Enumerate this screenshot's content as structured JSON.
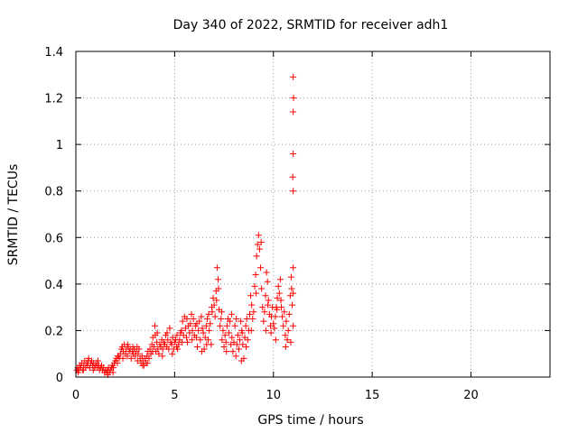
{
  "chart_data": {
    "type": "scatter",
    "title": "Day 340 of 2022, SRMTID for receiver adh1",
    "xlabel": "GPS time / hours",
    "ylabel": "SRMTID / TECUs",
    "xlim": [
      0,
      24
    ],
    "ylim": [
      0,
      1.4
    ],
    "x_ticks": [
      0,
      5,
      10,
      15,
      20
    ],
    "x_tick_labels": [
      "0",
      "5",
      "10",
      "15",
      "20"
    ],
    "y_ticks": [
      0,
      0.2,
      0.4,
      0.6,
      0.8,
      1.0,
      1.2,
      1.4
    ],
    "y_tick_labels": [
      "0",
      "0.2",
      "0.4",
      "0.6",
      "0.8",
      "1",
      "1.2",
      "1.4"
    ],
    "grid": true,
    "marker": "+",
    "series": [
      {
        "name": "adh1",
        "color": "#ff0000",
        "points": [
          [
            0.05,
            0.03
          ],
          [
            0.1,
            0.04
          ],
          [
            0.15,
            0.03
          ],
          [
            0.2,
            0.05
          ],
          [
            0.25,
            0.04
          ],
          [
            0.3,
            0.06
          ],
          [
            0.35,
            0.03
          ],
          [
            0.4,
            0.05
          ],
          [
            0.45,
            0.07
          ],
          [
            0.5,
            0.04
          ],
          [
            0.55,
            0.06
          ],
          [
            0.6,
            0.05
          ],
          [
            0.65,
            0.08
          ],
          [
            0.7,
            0.04
          ],
          [
            0.75,
            0.06
          ],
          [
            0.8,
            0.07
          ],
          [
            0.85,
            0.05
          ],
          [
            0.9,
            0.06
          ],
          [
            0.95,
            0.04
          ],
          [
            1.0,
            0.05
          ],
          [
            1.05,
            0.06
          ],
          [
            1.1,
            0.04
          ],
          [
            1.15,
            0.05
          ],
          [
            1.2,
            0.03
          ],
          [
            1.25,
            0.04
          ],
          [
            1.3,
            0.05
          ],
          [
            1.35,
            0.03
          ],
          [
            1.4,
            0.04
          ],
          [
            1.45,
            0.02
          ],
          [
            1.5,
            0.03
          ],
          [
            1.55,
            0.02
          ],
          [
            1.6,
            0.03
          ],
          [
            1.65,
            0.04
          ],
          [
            1.7,
            0.02
          ],
          [
            1.75,
            0.03
          ],
          [
            1.8,
            0.04
          ],
          [
            1.85,
            0.05
          ],
          [
            1.9,
            0.04
          ],
          [
            1.95,
            0.06
          ],
          [
            2.0,
            0.07
          ],
          [
            2.05,
            0.08
          ],
          [
            2.1,
            0.06
          ],
          [
            2.15,
            0.09
          ],
          [
            2.2,
            0.08
          ],
          [
            2.25,
            0.1
          ],
          [
            2.3,
            0.12
          ],
          [
            2.35,
            0.13
          ],
          [
            2.4,
            0.11
          ],
          [
            2.45,
            0.14
          ],
          [
            2.5,
            0.1
          ],
          [
            2.55,
            0.12
          ],
          [
            2.6,
            0.09
          ],
          [
            2.65,
            0.13
          ],
          [
            2.7,
            0.11
          ],
          [
            2.75,
            0.12
          ],
          [
            2.8,
            0.08
          ],
          [
            2.85,
            0.11
          ],
          [
            2.9,
            0.1
          ],
          [
            2.95,
            0.12
          ],
          [
            3.0,
            0.09
          ],
          [
            3.05,
            0.11
          ],
          [
            3.1,
            0.13
          ],
          [
            3.15,
            0.1
          ],
          [
            3.2,
            0.12
          ],
          [
            3.25,
            0.08
          ],
          [
            3.3,
            0.06
          ],
          [
            3.35,
            0.09
          ],
          [
            3.4,
            0.07
          ],
          [
            3.45,
            0.05
          ],
          [
            3.5,
            0.08
          ],
          [
            3.55,
            0.06
          ],
          [
            3.6,
            0.09
          ],
          [
            3.65,
            0.11
          ],
          [
            3.7,
            0.08
          ],
          [
            3.75,
            0.12
          ],
          [
            3.8,
            0.1
          ],
          [
            3.85,
            0.14
          ],
          [
            3.9,
            0.17
          ],
          [
            3.95,
            0.13
          ],
          [
            4.0,
            0.22
          ],
          [
            4.05,
            0.11
          ],
          [
            4.1,
            0.15
          ],
          [
            4.15,
            0.12
          ],
          [
            4.2,
            0.1
          ],
          [
            4.25,
            0.14
          ],
          [
            4.3,
            0.13
          ],
          [
            4.35,
            0.16
          ],
          [
            4.4,
            0.12
          ],
          [
            4.45,
            0.15
          ],
          [
            4.5,
            0.14
          ],
          [
            4.55,
            0.18
          ],
          [
            4.6,
            0.13
          ],
          [
            4.65,
            0.16
          ],
          [
            4.7,
            0.12
          ],
          [
            4.75,
            0.21
          ],
          [
            4.8,
            0.15
          ],
          [
            4.85,
            0.14
          ],
          [
            4.9,
            0.17
          ],
          [
            4.95,
            0.12
          ],
          [
            5.0,
            0.15
          ],
          [
            5.05,
            0.16
          ],
          [
            5.1,
            0.13
          ],
          [
            5.15,
            0.12
          ],
          [
            5.2,
            0.14
          ],
          [
            5.25,
            0.16
          ],
          [
            5.3,
            0.19
          ],
          [
            5.35,
            0.2
          ],
          [
            5.4,
            0.24
          ],
          [
            5.45,
            0.18
          ],
          [
            5.5,
            0.26
          ],
          [
            5.55,
            0.21
          ],
          [
            5.6,
            0.17
          ],
          [
            5.65,
            0.15
          ],
          [
            5.7,
            0.22
          ],
          [
            5.75,
            0.19
          ],
          [
            5.8,
            0.23
          ],
          [
            5.85,
            0.27
          ],
          [
            5.9,
            0.2
          ],
          [
            5.95,
            0.25
          ],
          [
            6.0,
            0.18
          ],
          [
            6.05,
            0.22
          ],
          [
            6.1,
            0.17
          ],
          [
            6.15,
            0.13
          ],
          [
            6.2,
            0.2
          ],
          [
            6.25,
            0.24
          ],
          [
            6.3,
            0.16
          ],
          [
            6.35,
            0.26
          ],
          [
            6.4,
            0.21
          ],
          [
            6.45,
            0.19
          ],
          [
            6.5,
            0.12
          ],
          [
            6.55,
            0.17
          ],
          [
            6.6,
            0.22
          ],
          [
            6.65,
            0.25
          ],
          [
            6.7,
            0.16
          ],
          [
            6.75,
            0.2
          ],
          [
            6.8,
            0.23
          ],
          [
            6.85,
            0.14
          ],
          [
            6.9,
            0.28
          ],
          [
            6.95,
            0.34
          ],
          [
            7.0,
            0.31
          ],
          [
            7.05,
            0.26
          ],
          [
            7.1,
            0.37
          ],
          [
            7.15,
            0.47
          ],
          [
            7.2,
            0.42
          ],
          [
            7.25,
            0.29
          ],
          [
            7.3,
            0.22
          ],
          [
            7.35,
            0.25
          ],
          [
            7.4,
            0.16
          ],
          [
            7.45,
            0.2
          ],
          [
            7.5,
            0.13
          ],
          [
            7.55,
            0.18
          ],
          [
            7.6,
            0.15
          ],
          [
            7.65,
            0.22
          ],
          [
            7.7,
            0.25
          ],
          [
            7.75,
            0.19
          ],
          [
            7.8,
            0.24
          ],
          [
            7.85,
            0.14
          ],
          [
            7.9,
            0.17
          ],
          [
            7.95,
            0.11
          ],
          [
            8.0,
            0.15
          ],
          [
            8.05,
            0.22
          ],
          [
            8.1,
            0.09
          ],
          [
            8.15,
            0.14
          ],
          [
            8.2,
            0.18
          ],
          [
            8.25,
            0.12
          ],
          [
            8.3,
            0.16
          ],
          [
            8.35,
            0.24
          ],
          [
            8.4,
            0.2
          ],
          [
            8.45,
            0.14
          ],
          [
            8.5,
            0.08
          ],
          [
            8.55,
            0.17
          ],
          [
            8.6,
            0.22
          ],
          [
            8.65,
            0.25
          ],
          [
            8.7,
            0.16
          ],
          [
            8.75,
            0.2
          ],
          [
            8.8,
            0.27
          ],
          [
            8.85,
            0.35
          ],
          [
            8.9,
            0.31
          ],
          [
            8.95,
            0.25
          ],
          [
            9.0,
            0.28
          ],
          [
            9.05,
            0.39
          ],
          [
            9.1,
            0.44
          ],
          [
            9.15,
            0.52
          ],
          [
            9.2,
            0.57
          ],
          [
            9.25,
            0.61
          ],
          [
            9.3,
            0.55
          ],
          [
            9.35,
            0.47
          ],
          [
            9.4,
            0.38
          ],
          [
            9.45,
            0.3
          ],
          [
            9.5,
            0.24
          ],
          [
            9.55,
            0.28
          ],
          [
            9.6,
            0.35
          ],
          [
            9.65,
            0.45
          ],
          [
            9.7,
            0.41
          ],
          [
            9.75,
            0.33
          ],
          [
            9.8,
            0.27
          ],
          [
            9.85,
            0.22
          ],
          [
            9.9,
            0.26
          ],
          [
            9.95,
            0.3
          ],
          [
            10.0,
            0.23
          ],
          [
            10.05,
            0.21
          ],
          [
            10.1,
            0.26
          ],
          [
            10.15,
            0.3
          ],
          [
            10.2,
            0.34
          ],
          [
            10.25,
            0.39
          ],
          [
            10.3,
            0.36
          ],
          [
            10.35,
            0.42
          ],
          [
            10.4,
            0.3
          ],
          [
            10.45,
            0.26
          ],
          [
            10.5,
            0.22
          ],
          [
            10.55,
            0.28
          ],
          [
            10.6,
            0.18
          ],
          [
            10.65,
            0.24
          ],
          [
            10.7,
            0.16
          ],
          [
            10.75,
            0.2
          ],
          [
            10.8,
            0.27
          ],
          [
            10.85,
            0.35
          ],
          [
            10.9,
            0.43
          ],
          [
            10.95,
            0.31
          ],
          [
            11.0,
            0.22
          ],
          [
            11.0,
            0.47
          ],
          [
            11.0,
            0.36
          ],
          [
            11.0,
            0.8
          ],
          [
            10.98,
            0.86
          ],
          [
            11.0,
            0.96
          ],
          [
            11.0,
            1.14
          ],
          [
            11.02,
            1.2
          ],
          [
            11.0,
            1.29
          ],
          [
            0.12,
            0.02
          ],
          [
            0.38,
            0.03
          ],
          [
            0.62,
            0.07
          ],
          [
            0.88,
            0.03
          ],
          [
            1.12,
            0.07
          ],
          [
            1.62,
            0.01
          ],
          [
            1.88,
            0.02
          ],
          [
            2.12,
            0.09
          ],
          [
            2.38,
            0.08
          ],
          [
            2.62,
            0.14
          ],
          [
            2.88,
            0.13
          ],
          [
            3.12,
            0.07
          ],
          [
            3.38,
            0.05
          ],
          [
            3.62,
            0.06
          ],
          [
            3.88,
            0.11
          ],
          [
            4.12,
            0.19
          ],
          [
            4.38,
            0.09
          ],
          [
            4.62,
            0.19
          ],
          [
            4.88,
            0.1
          ],
          [
            5.12,
            0.18
          ],
          [
            5.38,
            0.15
          ],
          [
            5.62,
            0.25
          ],
          [
            5.88,
            0.16
          ],
          [
            6.12,
            0.23
          ],
          [
            6.38,
            0.11
          ],
          [
            6.62,
            0.14
          ],
          [
            6.88,
            0.3
          ],
          [
            7.12,
            0.33
          ],
          [
            7.38,
            0.28
          ],
          [
            7.62,
            0.11
          ],
          [
            7.88,
            0.27
          ],
          [
            8.12,
            0.25
          ],
          [
            8.38,
            0.07
          ],
          [
            8.62,
            0.13
          ],
          [
            8.88,
            0.2
          ],
          [
            9.12,
            0.36
          ],
          [
            9.38,
            0.58
          ],
          [
            9.62,
            0.2
          ],
          [
            9.88,
            0.19
          ],
          [
            10.12,
            0.16
          ],
          [
            10.38,
            0.33
          ],
          [
            10.62,
            0.13
          ],
          [
            10.88,
            0.15
          ],
          [
            10.92,
            0.38
          ],
          [
            10.18,
            0.29
          ],
          [
            9.72,
            0.31
          ],
          [
            8.42,
            0.19
          ],
          [
            7.22,
            0.38
          ],
          [
            6.72,
            0.27
          ],
          [
            4.02,
            0.18
          ]
        ]
      }
    ]
  }
}
